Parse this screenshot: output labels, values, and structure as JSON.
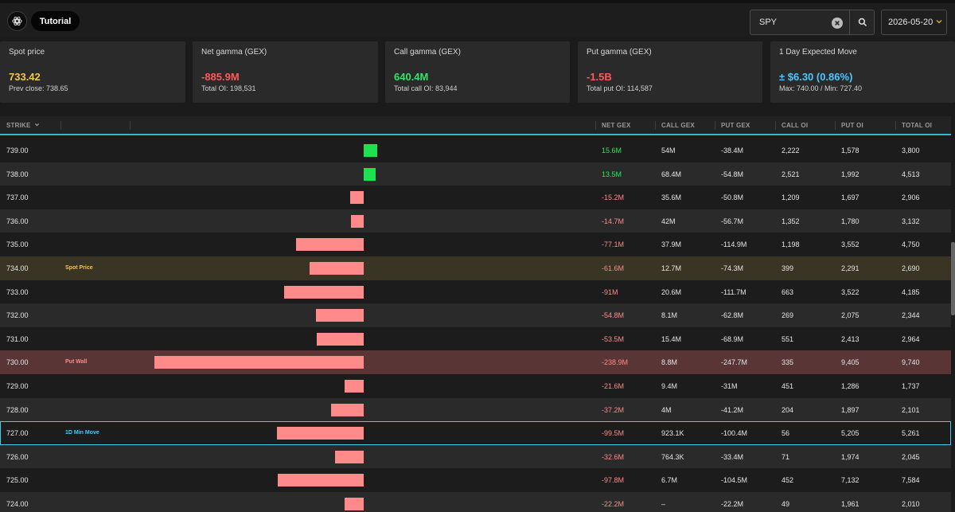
{
  "header": {
    "tutorial_label": "Tutorial",
    "search": {
      "value": "SPY"
    },
    "date": {
      "value": "2026-05-20"
    }
  },
  "cards": [
    {
      "title": "Spot price",
      "value": "733.42",
      "sub": "Prev close: 738.65",
      "color": "#f3c64a"
    },
    {
      "title": "Net gamma (GEX)",
      "value": "-885.9M",
      "sub": "Total OI: 198,531",
      "color": "#ff5a5a"
    },
    {
      "title": "Call gamma (GEX)",
      "value": "640.4M",
      "sub": "Total call OI: 83,944",
      "color": "#39e06a"
    },
    {
      "title": "Put gamma (GEX)",
      "value": "-1.5B",
      "sub": "Total put OI: 114,587",
      "color": "#ff5a5a"
    },
    {
      "title": "1 Day Expected Move",
      "value": "± $6.30 (0.86%)",
      "sub": "Max: 740.00 / Min: 727.40",
      "color": "#49c9ff"
    }
  ],
  "table": {
    "columns": {
      "strike": "STRIKE",
      "net_gex": "NET GEX",
      "call_gex": "CALL GEX",
      "put_gex": "PUT GEX",
      "call_oi": "CALL OI",
      "put_oi": "PUT OI",
      "total_oi": "TOTAL OI"
    },
    "colors": {
      "positive": "#2ee65c",
      "negative": "#ff8a8a"
    },
    "rows": [
      {
        "strike": "739.00",
        "net_gex": "15.6M",
        "net_value": 15.6,
        "call_gex": "54M",
        "put_gex": "-38.4M",
        "call_oi": "2,222",
        "put_oi": "1,578",
        "total_oi": "3,800"
      },
      {
        "strike": "738.00",
        "net_gex": "13.5M",
        "net_value": 13.5,
        "call_gex": "68.4M",
        "put_gex": "-54.8M",
        "call_oi": "2,521",
        "put_oi": "1,992",
        "total_oi": "4,513"
      },
      {
        "strike": "737.00",
        "net_gex": "-15.2M",
        "net_value": -15.2,
        "call_gex": "35.6M",
        "put_gex": "-50.8M",
        "call_oi": "1,209",
        "put_oi": "1,697",
        "total_oi": "2,906"
      },
      {
        "strike": "736.00",
        "net_gex": "-14.7M",
        "net_value": -14.7,
        "call_gex": "42M",
        "put_gex": "-56.7M",
        "call_oi": "1,352",
        "put_oi": "1,780",
        "total_oi": "3,132"
      },
      {
        "strike": "735.00",
        "net_gex": "-77.1M",
        "net_value": -77.1,
        "call_gex": "37.9M",
        "put_gex": "-114.9M",
        "call_oi": "1,198",
        "put_oi": "3,552",
        "total_oi": "4,750"
      },
      {
        "strike": "734.00",
        "net_gex": "-61.6M",
        "net_value": -61.6,
        "call_gex": "12.7M",
        "put_gex": "-74.3M",
        "call_oi": "399",
        "put_oi": "2,291",
        "total_oi": "2,690",
        "badge": "Spot Price",
        "highlight": "spot"
      },
      {
        "strike": "733.00",
        "net_gex": "-91M",
        "net_value": -91,
        "call_gex": "20.6M",
        "put_gex": "-111.7M",
        "call_oi": "663",
        "put_oi": "3,522",
        "total_oi": "4,185"
      },
      {
        "strike": "732.00",
        "net_gex": "-54.8M",
        "net_value": -54.8,
        "call_gex": "8.1M",
        "put_gex": "-62.8M",
        "call_oi": "269",
        "put_oi": "2,075",
        "total_oi": "2,344"
      },
      {
        "strike": "731.00",
        "net_gex": "-53.5M",
        "net_value": -53.5,
        "call_gex": "15.4M",
        "put_gex": "-68.9M",
        "call_oi": "551",
        "put_oi": "2,413",
        "total_oi": "2,964"
      },
      {
        "strike": "730.00",
        "net_gex": "-238.9M",
        "net_value": -238.9,
        "call_gex": "8.8M",
        "put_gex": "-247.7M",
        "call_oi": "335",
        "put_oi": "9,405",
        "total_oi": "9,740",
        "badge": "Put Wall",
        "highlight": "wall"
      },
      {
        "strike": "729.00",
        "net_gex": "-21.6M",
        "net_value": -21.6,
        "call_gex": "9.4M",
        "put_gex": "-31M",
        "call_oi": "451",
        "put_oi": "1,286",
        "total_oi": "1,737"
      },
      {
        "strike": "728.00",
        "net_gex": "-37.2M",
        "net_value": -37.2,
        "call_gex": "4M",
        "put_gex": "-41.2M",
        "call_oi": "204",
        "put_oi": "1,897",
        "total_oi": "2,101"
      },
      {
        "strike": "727.00",
        "net_gex": "-99.5M",
        "net_value": -99.5,
        "call_gex": "923.1K",
        "put_gex": "-100.4M",
        "call_oi": "56",
        "put_oi": "5,205",
        "total_oi": "5,261",
        "badge": "1D Min Move",
        "highlight": "minmove"
      },
      {
        "strike": "726.00",
        "net_gex": "-32.6M",
        "net_value": -32.6,
        "call_gex": "764.3K",
        "put_gex": "-33.4M",
        "call_oi": "71",
        "put_oi": "1,974",
        "total_oi": "2,045"
      },
      {
        "strike": "725.00",
        "net_gex": "-97.8M",
        "net_value": -97.8,
        "call_gex": "6.7M",
        "put_gex": "-104.5M",
        "call_oi": "452",
        "put_oi": "7,132",
        "total_oi": "7,584"
      },
      {
        "strike": "724.00",
        "net_gex": "-22.2M",
        "net_value": -22.2,
        "call_gex": "–",
        "put_gex": "-22.2M",
        "call_oi": "49",
        "put_oi": "1,961",
        "total_oi": "2,010"
      }
    ]
  }
}
